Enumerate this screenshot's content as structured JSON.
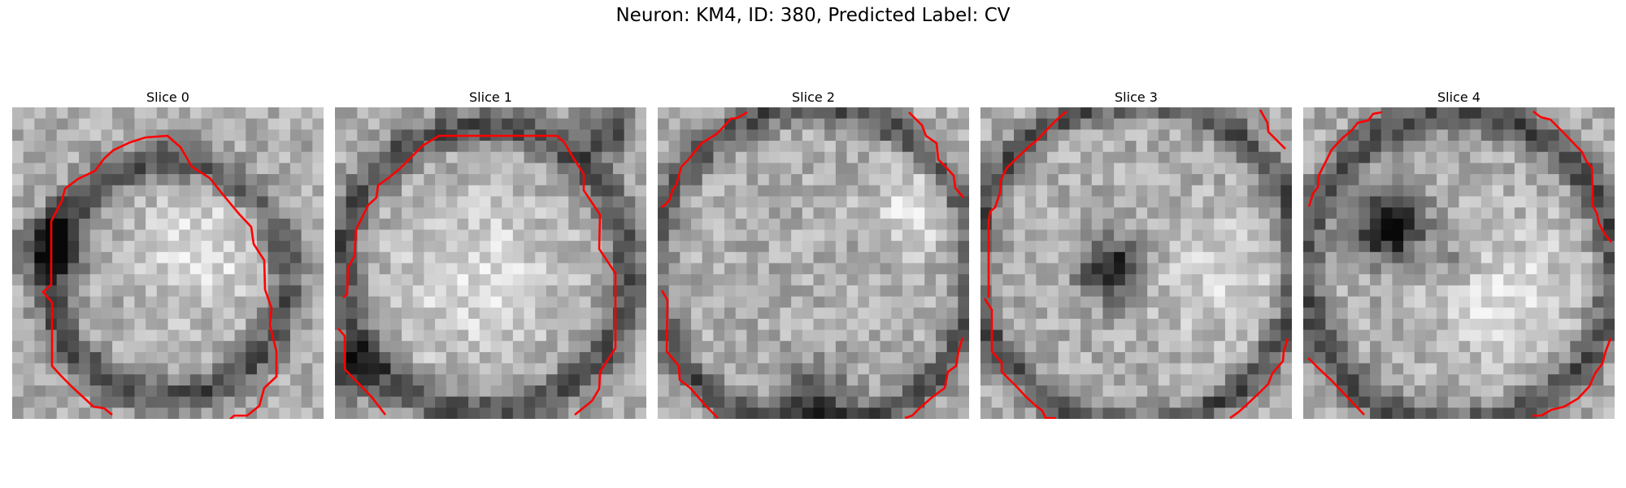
{
  "figure": {
    "title": "Neuron: KM4, ID: 380, Predicted Label: CV"
  },
  "panels": [
    {
      "title": "Slice 0",
      "seed": 11
    },
    {
      "title": "Slice 1",
      "seed": 23
    },
    {
      "title": "Slice 2",
      "seed": 37
    },
    {
      "title": "Slice 3",
      "seed": 51
    },
    {
      "title": "Slice 4",
      "seed": 68
    }
  ],
  "colors": {
    "contour": "#ff0000",
    "background": "#ffffff"
  }
}
